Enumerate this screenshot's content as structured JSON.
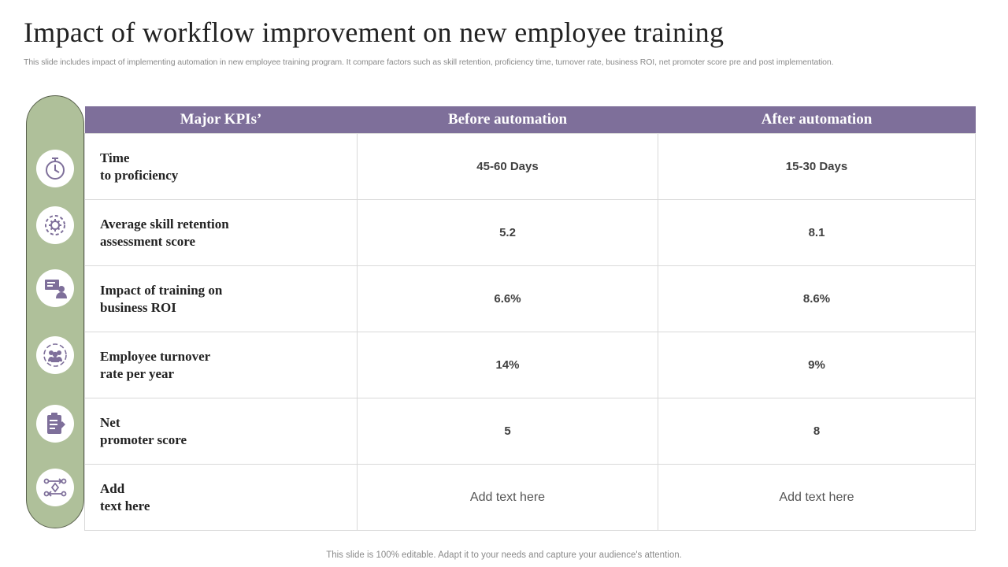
{
  "title": "Impact of workflow improvement on new employee training",
  "subtitle": "This slide includes impact of implementing automation in new employee training program. It compare factors such as skill retention, proficiency time, turnover rate, business ROI, net promoter score pre and post implementation.",
  "table": {
    "headers": [
      "Major KPIs’",
      "Before automation",
      "After automation"
    ],
    "rows": [
      {
        "kpi_line1": "Time",
        "kpi_line2": "to proficiency",
        "before": "45-60 Days",
        "after": "15-30 Days",
        "icon": "stopwatch-icon"
      },
      {
        "kpi_line1": "Average skill retention",
        "kpi_line2": "assessment score",
        "before": "5.2",
        "after": "8.1",
        "icon": "gear-cycle-icon"
      },
      {
        "kpi_line1": "Impact of training on",
        "kpi_line2": "business ROI",
        "before": "6.6%",
        "after": "8.6%",
        "icon": "presentation-user-icon"
      },
      {
        "kpi_line1": "Employee turnover",
        "kpi_line2": "rate per year",
        "before": "14%",
        "after": "9%",
        "icon": "team-cycle-icon"
      },
      {
        "kpi_line1": "Net",
        "kpi_line2": "promoter score",
        "before": "5",
        "after": "8",
        "icon": "clipboard-icon"
      },
      {
        "kpi_line1": "Add",
        "kpi_line2": "text here",
        "before": "Add text here",
        "after": "Add text here",
        "icon": "workflow-icon"
      }
    ]
  },
  "footer": "This slide is 100% editable. Adapt it to your needs and capture your audience's attention.",
  "colors": {
    "header_bg": "#7e6f9a",
    "pill_bg": "#afc09a",
    "icon_color": "#7e6f9a"
  }
}
